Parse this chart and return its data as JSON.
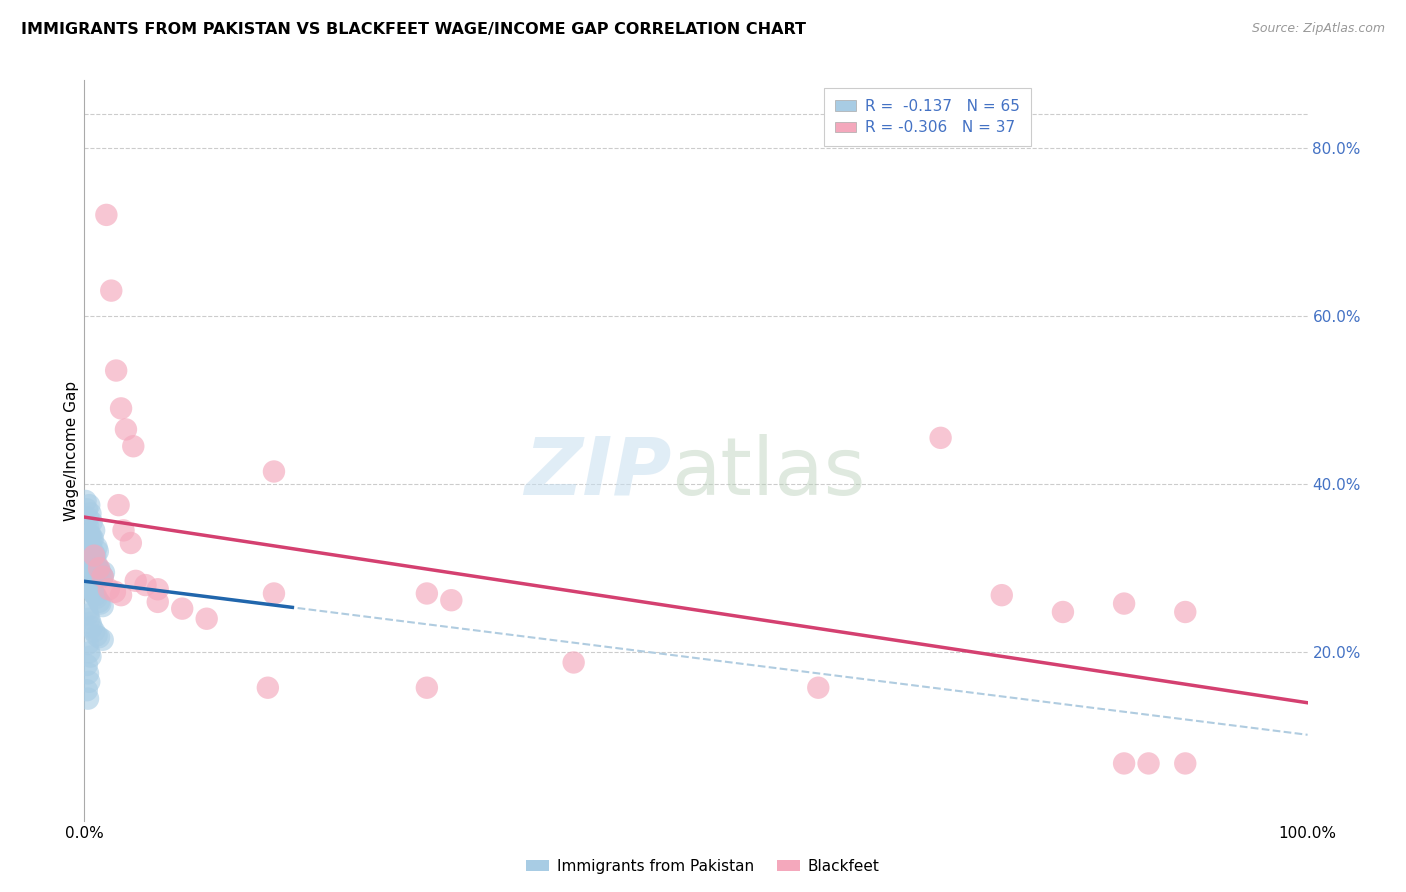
{
  "title": "IMMIGRANTS FROM PAKISTAN VS BLACKFEET WAGE/INCOME GAP CORRELATION CHART",
  "source": "Source: ZipAtlas.com",
  "ylabel": "Wage/Income Gap",
  "legend_label1": "Immigrants from Pakistan",
  "legend_label2": "Blackfeet",
  "blue_scatter_color": "#a8cce4",
  "pink_scatter_color": "#f4a8bc",
  "trend_blue_color": "#2166ac",
  "trend_pink_color": "#d44070",
  "trend_dashed_color": "#b0cce0",
  "grid_color": "#cccccc",
  "background_color": "#ffffff",
  "right_axis_color": "#4472c4",
  "ylim": [
    0.0,
    0.88
  ],
  "xlim": [
    0.0,
    1.0
  ],
  "yticks": [
    0.2,
    0.4,
    0.6,
    0.8
  ],
  "ytick_labels": [
    "20.0%",
    "40.0%",
    "60.0%",
    "80.0%"
  ],
  "pakistan_points": [
    [
      0.001,
      0.38
    ],
    [
      0.002,
      0.37
    ],
    [
      0.003,
      0.36
    ],
    [
      0.004,
      0.375
    ],
    [
      0.005,
      0.365
    ],
    [
      0.006,
      0.355
    ],
    [
      0.003,
      0.35
    ],
    [
      0.004,
      0.34
    ],
    [
      0.005,
      0.34
    ],
    [
      0.006,
      0.335
    ],
    [
      0.007,
      0.335
    ],
    [
      0.008,
      0.345
    ],
    [
      0.003,
      0.33
    ],
    [
      0.004,
      0.33
    ],
    [
      0.005,
      0.325
    ],
    [
      0.006,
      0.32
    ],
    [
      0.007,
      0.32
    ],
    [
      0.008,
      0.315
    ],
    [
      0.009,
      0.315
    ],
    [
      0.01,
      0.325
    ],
    [
      0.011,
      0.32
    ],
    [
      0.002,
      0.31
    ],
    [
      0.003,
      0.31
    ],
    [
      0.004,
      0.308
    ],
    [
      0.005,
      0.305
    ],
    [
      0.006,
      0.302
    ],
    [
      0.007,
      0.3
    ],
    [
      0.008,
      0.298
    ],
    [
      0.009,
      0.3
    ],
    [
      0.01,
      0.305
    ],
    [
      0.011,
      0.3
    ],
    [
      0.012,
      0.298
    ],
    [
      0.013,
      0.295
    ],
    [
      0.014,
      0.292
    ],
    [
      0.015,
      0.29
    ],
    [
      0.016,
      0.295
    ],
    [
      0.002,
      0.285
    ],
    [
      0.003,
      0.282
    ],
    [
      0.004,
      0.28
    ],
    [
      0.005,
      0.278
    ],
    [
      0.006,
      0.275
    ],
    [
      0.007,
      0.272
    ],
    [
      0.008,
      0.27
    ],
    [
      0.009,
      0.268
    ],
    [
      0.01,
      0.265
    ],
    [
      0.012,
      0.26
    ],
    [
      0.013,
      0.258
    ],
    [
      0.015,
      0.255
    ],
    [
      0.002,
      0.25
    ],
    [
      0.003,
      0.245
    ],
    [
      0.004,
      0.24
    ],
    [
      0.005,
      0.235
    ],
    [
      0.006,
      0.23
    ],
    [
      0.008,
      0.225
    ],
    [
      0.01,
      0.22
    ],
    [
      0.012,
      0.218
    ],
    [
      0.015,
      0.215
    ],
    [
      0.003,
      0.21
    ],
    [
      0.004,
      0.2
    ],
    [
      0.005,
      0.195
    ],
    [
      0.002,
      0.185
    ],
    [
      0.003,
      0.175
    ],
    [
      0.004,
      0.165
    ],
    [
      0.002,
      0.155
    ],
    [
      0.003,
      0.145
    ]
  ],
  "blackfeet_points": [
    [
      0.018,
      0.72
    ],
    [
      0.022,
      0.63
    ],
    [
      0.026,
      0.535
    ],
    [
      0.03,
      0.49
    ],
    [
      0.034,
      0.465
    ],
    [
      0.04,
      0.445
    ],
    [
      0.155,
      0.415
    ],
    [
      0.028,
      0.375
    ],
    [
      0.032,
      0.345
    ],
    [
      0.038,
      0.33
    ],
    [
      0.008,
      0.315
    ],
    [
      0.012,
      0.3
    ],
    [
      0.015,
      0.29
    ],
    [
      0.02,
      0.275
    ],
    [
      0.025,
      0.272
    ],
    [
      0.03,
      0.268
    ],
    [
      0.042,
      0.285
    ],
    [
      0.05,
      0.28
    ],
    [
      0.06,
      0.275
    ],
    [
      0.155,
      0.27
    ],
    [
      0.28,
      0.27
    ],
    [
      0.3,
      0.262
    ],
    [
      0.06,
      0.26
    ],
    [
      0.08,
      0.252
    ],
    [
      0.1,
      0.24
    ],
    [
      0.7,
      0.455
    ],
    [
      0.75,
      0.268
    ],
    [
      0.8,
      0.248
    ],
    [
      0.85,
      0.258
    ],
    [
      0.9,
      0.248
    ],
    [
      0.15,
      0.158
    ],
    [
      0.28,
      0.158
    ],
    [
      0.4,
      0.188
    ],
    [
      0.6,
      0.158
    ],
    [
      0.85,
      0.068
    ],
    [
      0.87,
      0.068
    ],
    [
      0.9,
      0.068
    ]
  ]
}
